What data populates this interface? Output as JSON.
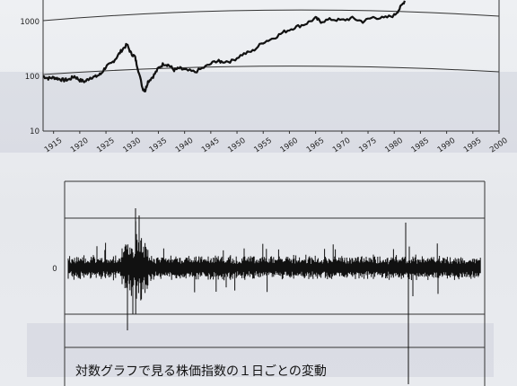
{
  "caption": "対数グラフで見る株価指数の１日ごとの変動",
  "chart_data": [
    {
      "type": "line",
      "yscale": "log",
      "ylim": [
        10,
        3000
      ],
      "xlim": [
        1913,
        2000
      ],
      "yticks": [
        10,
        100,
        1000
      ],
      "ytick_labels": [
        "10",
        "100",
        "1000"
      ],
      "xticks": [
        1915,
        1920,
        1925,
        1930,
        1935,
        1940,
        1945,
        1950,
        1955,
        1960,
        1965,
        1970,
        1975,
        1980,
        1985,
        1990,
        1995,
        2000
      ],
      "xtick_labels": [
        "1915",
        "1920",
        "1925",
        "1930",
        "1935",
        "1940",
        "1945",
        "1950",
        "1955",
        "1960",
        "1965",
        "1970",
        "1975",
        "1980",
        "1985",
        "1990",
        "1995",
        "2000"
      ],
      "grid": "curved reference lines at 100 and 1000",
      "series": [
        {
          "x": [
            1913,
            1914,
            1915,
            1916,
            1917,
            1918,
            1919,
            1920,
            1921,
            1922,
            1923,
            1924,
            1925,
            1926,
            1927,
            1928,
            1929,
            1929.8,
            1930.5,
            1931,
            1932,
            1932.5,
            1933,
            1934,
            1935,
            1936,
            1937,
            1938,
            1939,
            1940,
            1942,
            1944,
            1946,
            1947,
            1949,
            1951,
            1953,
            1955,
            1957,
            1959,
            1961,
            1963,
            1965,
            1966,
            1968,
            1970,
            1972,
            1974,
            1976,
            1978,
            1980,
            1981,
            1982
          ],
          "values": [
            100,
            92,
            95,
            90,
            85,
            88,
            100,
            85,
            80,
            95,
            98,
            110,
            150,
            170,
            220,
            300,
            380,
            260,
            230,
            150,
            60,
            55,
            80,
            100,
            140,
            170,
            160,
            130,
            140,
            130,
            120,
            150,
            190,
            185,
            190,
            250,
            290,
            420,
            500,
            650,
            780,
            900,
            1150,
            1000,
            1100,
            1050,
            1150,
            1000,
            1200,
            1150,
            1300,
            1700,
            2400
          ]
        }
      ]
    },
    {
      "type": "line",
      "description_of_axis": "daily log change",
      "ytick_labels": [
        "0"
      ],
      "series": [
        {
          "values": []
        }
      ]
    }
  ]
}
